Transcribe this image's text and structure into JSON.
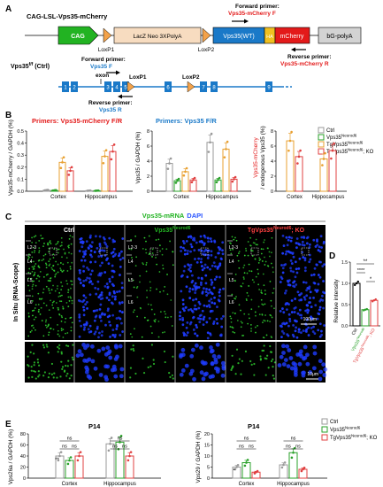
{
  "panel_labels": {
    "A": "A",
    "B": "B",
    "C": "C",
    "D": "D",
    "E": "E"
  },
  "panel_a": {
    "construct_title": "CAG-LSL-Vps35-mCherry",
    "boxes": {
      "cag": "CAG",
      "lacz": "LacZ Neo 3XPolyA",
      "vps35": "Vps35(WT)",
      "ha": "HA",
      "mcherry": "mCherry",
      "polya": "bG-polyA"
    },
    "loxp1": "LoxP1",
    "loxp2": "LoxP2",
    "forward_primer_label": "Forward primer:",
    "forward_primer_name": "Vps35-mCherry F",
    "reverse_primer_label": "Reverse primer:",
    "reverse_primer_name": "Vps35-mCherry R",
    "ctrl_gene": "Vps35",
    "ctrl_sup": "f/f",
    "ctrl_suffix": " (Ctrl)",
    "exon_label": "exon",
    "exon_numbers": [
      "1",
      "2",
      "3",
      "4",
      "5",
      "6",
      "7",
      "8",
      "9"
    ],
    "fwd2_label": "Forward primer:",
    "fwd2_name": "Vps35 F",
    "rev2_label": "Reverse primer:",
    "rev2_name": "Vps35 R",
    "loxp1b": "LoxP1",
    "loxp2b": "LoxP2"
  },
  "panel_b": {
    "title1": "Primers: Vps35-mCherry F/R",
    "title2": "Primers: Vps35 F/R",
    "legend": [
      {
        "name": "Ctrl",
        "sup": "",
        "suffix": "",
        "color": "#999999"
      },
      {
        "name": "Vps35",
        "sup": "Neurod6",
        "suffix": "",
        "color": "#2aa12a"
      },
      {
        "name": "TgVps35",
        "sup": "Neurod6",
        "suffix": "",
        "color": "#e8a030"
      },
      {
        "name": "TgVps35",
        "sup": "Neurod6",
        "suffix": "; KO",
        "color": "#e04040"
      }
    ],
    "chart1": {
      "ylabel": "Vps35-mCherry / GAPDH (%)",
      "yticks": [
        "0.0",
        "0.1",
        "0.2",
        "0.3",
        "0.4",
        "0.5"
      ],
      "groups": [
        "Cortex",
        "Hippocampus"
      ]
    },
    "chart2": {
      "ylabel": "Vps35 / GAPDH (%)",
      "yticks": [
        "0",
        "2",
        "4",
        "6",
        "8"
      ],
      "groups": [
        "Cortex",
        "Hippocampus"
      ]
    },
    "chart3": {
      "ylabel1": "Vps35-mCherry",
      "ylabel2": "/ endogenous Vps35 (%)",
      "yticks": [
        "0",
        "2",
        "4",
        "6",
        "8"
      ],
      "groups": [
        "Cortex",
        "Hippocampus"
      ]
    }
  },
  "panel_c": {
    "title_gene": "Vps35-mRNA",
    "title_stain": "DAPI",
    "col_ctrl": "Ctrl",
    "col_vps": "Vps35",
    "col_vps_sup": "Neurod6",
    "col_tg": "TgVps35",
    "col_tg_sup": "Neurod6",
    "col_tg_suffix": "; KO",
    "side_label": "In Situ (RNA-Scope)",
    "layers": [
      "L2-3",
      "L4",
      "L5",
      "L6"
    ],
    "scale1": "100μm",
    "scale2": "10μm"
  },
  "panel_d": {
    "ylabel": "Relative intensity",
    "yticks": [
      "0.0",
      "0.5",
      "1.0",
      "1.5"
    ],
    "sig": [
      "**",
      "****",
      "*"
    ],
    "xlabels": [
      {
        "name": "Ctrl",
        "sup": "",
        "suffix": "",
        "color": "#000000"
      },
      {
        "name": "Vps35",
        "sup": "Neurod6",
        "suffix": "",
        "color": "#2aa12a"
      },
      {
        "name": "TgVps35",
        "sup": "Neurod6",
        "suffix": "; KO",
        "color": "#e04040"
      }
    ]
  },
  "panel_e": {
    "title_left": "P14",
    "title_right": "P14",
    "legend": [
      {
        "name": "Ctrl",
        "sup": "",
        "suffix": "",
        "color": "#999999"
      },
      {
        "name": "Vps35",
        "sup": "Neurod6",
        "suffix": "",
        "color": "#2aa12a"
      },
      {
        "name": "TgVps35",
        "sup": "Neurod6",
        "suffix": "; KO",
        "color": "#e04040"
      }
    ],
    "chart1": {
      "ylabel": "Vps26a / GAPDH (%)",
      "yticks": [
        "0",
        "20",
        "40",
        "60",
        "80"
      ],
      "groups": [
        "Cortex",
        "Hippocampus"
      ],
      "sig": [
        "ns",
        "ns",
        "ns",
        "ns",
        "ns",
        "ns"
      ],
      "star": "**"
    },
    "chart2": {
      "ylabel": "Vps29 / GAPDH (%)",
      "yticks": [
        "0",
        "5",
        "10",
        "15",
        "20"
      ],
      "groups": [
        "Cortex",
        "Hippocampus"
      ],
      "sig": [
        "ns",
        "ns",
        "ns",
        "ns",
        "ns",
        "ns"
      ],
      "star": "*"
    }
  },
  "chart_data": [
    {
      "type": "bar",
      "title": "Primers: Vps35-mCherry F/R",
      "ylabel": "Vps35-mCherry / GAPDH (%)",
      "ylim": [
        0,
        0.5
      ],
      "categories": [
        "Cortex",
        "Hippocampus"
      ],
      "series": [
        {
          "name": "Ctrl",
          "values": [
            0.01,
            0.005
          ]
        },
        {
          "name": "Vps35 Neurod6",
          "values": [
            0.008,
            0.005
          ]
        },
        {
          "name": "TgVps35 Neurod6",
          "values": [
            0.24,
            0.29
          ]
        },
        {
          "name": "TgVps35 Neurod6; KO",
          "values": [
            0.17,
            0.33
          ]
        }
      ]
    },
    {
      "type": "bar",
      "title": "Primers: Vps35 F/R",
      "ylabel": "Vps35 / GAPDH (%)",
      "ylim": [
        0,
        8
      ],
      "categories": [
        "Cortex",
        "Hippocampus"
      ],
      "series": [
        {
          "name": "Ctrl",
          "values": [
            3.7,
            6.5
          ]
        },
        {
          "name": "Vps35 Neurod6",
          "values": [
            1.4,
            1.5
          ]
        },
        {
          "name": "TgVps35 Neurod6",
          "values": [
            2.6,
            5.6
          ]
        },
        {
          "name": "TgVps35 Neurod6; KO",
          "values": [
            1.5,
            1.6
          ]
        }
      ]
    },
    {
      "type": "bar",
      "ylabel": "Vps35-mCherry / endogenous Vps35 (%)",
      "ylim": [
        0,
        8
      ],
      "categories": [
        "Cortex",
        "Hippocampus"
      ],
      "series": [
        {
          "name": "TgVps35 Neurod6",
          "values": [
            6.7,
            4.3
          ]
        },
        {
          "name": "TgVps35 Neurod6; KO",
          "values": [
            4.6,
            5.4
          ]
        }
      ]
    },
    {
      "type": "bar",
      "ylabel": "Relative intensity",
      "ylim": [
        0,
        1.5
      ],
      "categories": [
        "Ctrl",
        "Vps35 Neurod6",
        "TgVps35 Neurod6; KO"
      ],
      "values": [
        1.0,
        0.38,
        0.6
      ]
    },
    {
      "type": "bar",
      "title": "P14",
      "ylabel": "Vps26a / GAPDH (%)",
      "ylim": [
        0,
        80
      ],
      "categories": [
        "Cortex",
        "Hippocampus"
      ],
      "series": [
        {
          "name": "Ctrl",
          "values": [
            40,
            62
          ]
        },
        {
          "name": "Vps35 Neurod6",
          "values": [
            32,
            65
          ]
        },
        {
          "name": "TgVps35 Neurod6; KO",
          "values": [
            40,
            40
          ]
        }
      ]
    },
    {
      "type": "bar",
      "title": "P14",
      "ylabel": "Vps29 / GAPDH (%)",
      "ylim": [
        0,
        20
      ],
      "categories": [
        "Cortex",
        "Hippocampus"
      ],
      "series": [
        {
          "name": "Ctrl",
          "values": [
            5,
            6
          ]
        },
        {
          "name": "Vps35 Neurod6",
          "values": [
            7,
            11.5
          ]
        },
        {
          "name": "TgVps35 Neurod6; KO",
          "values": [
            2.7,
            4
          ]
        }
      ]
    }
  ]
}
